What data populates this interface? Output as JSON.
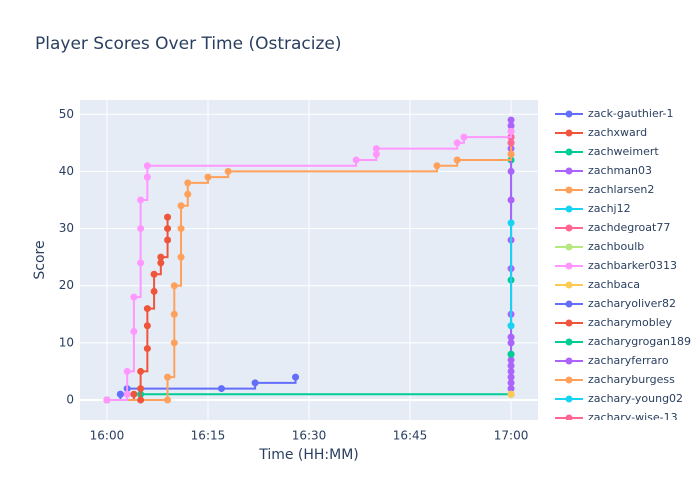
{
  "chart_data": {
    "type": "step-line",
    "title": "Player Scores Over Time (Ostracize)",
    "x_label": "Time (HH:MM)",
    "y_label": "Score",
    "xlim": [
      "15:56",
      "17:04"
    ],
    "xticks": [
      "16:00",
      "16:15",
      "16:30",
      "16:45",
      "17:00"
    ],
    "ylim": [
      -3.5,
      52.5
    ],
    "yticks": [
      0,
      10,
      20,
      30,
      40,
      50
    ],
    "grid": true,
    "legend": "right",
    "series": [
      {
        "name": "zack-gauthier-1",
        "color": "#636efa",
        "x": [
          "16:00",
          "16:02",
          "16:03",
          "16:17",
          "16:22",
          "16:28"
        ],
        "values": [
          0,
          1,
          2,
          2,
          3,
          4
        ]
      },
      {
        "name": "zachxward",
        "color": "#EF553B",
        "x": [
          "16:00",
          "16:04"
        ],
        "values": [
          0,
          1
        ]
      },
      {
        "name": "zachweimert",
        "color": "#00cc96",
        "x": [
          "16:05",
          "17:00",
          "17:00",
          "17:00",
          "17:00"
        ],
        "values": [
          1,
          1,
          8,
          21,
          42
        ]
      },
      {
        "name": "zachman03",
        "color": "#ab63fa",
        "x": [
          "17:00",
          "17:00",
          "17:00",
          "17:00",
          "17:00",
          "17:00",
          "17:00",
          "17:00",
          "17:00",
          "17:00",
          "17:00",
          "17:00",
          "17:00",
          "17:00",
          "17:00",
          "17:00",
          "17:00",
          "17:00",
          "17:00"
        ],
        "values": [
          1,
          2,
          3,
          4,
          5,
          6,
          7,
          10,
          11,
          15,
          23,
          28,
          35,
          44,
          45,
          46,
          47,
          48,
          49
        ]
      },
      {
        "name": "zachlarsen2",
        "color": "#FFA15A",
        "x": [
          "16:00",
          "16:09",
          "16:09",
          "16:10",
          "16:10",
          "16:10",
          "16:11",
          "16:11",
          "16:11",
          "16:12",
          "16:12",
          "16:15",
          "16:18",
          "16:49",
          "16:52",
          "17:00",
          "17:00"
        ],
        "values": [
          0,
          0,
          4,
          10,
          15,
          20,
          25,
          30,
          34,
          36,
          38,
          39,
          40,
          41,
          42,
          43,
          47
        ]
      },
      {
        "name": "zachj12",
        "color": "#19d3f3",
        "x": [
          "17:00",
          "17:00"
        ],
        "values": [
          13,
          31
        ]
      },
      {
        "name": "zachdegroat77",
        "color": "#FF6692",
        "x": [
          "17:00"
        ],
        "values": [
          46
        ]
      },
      {
        "name": "zachboulb",
        "color": "#B6E880",
        "x": [
          "17:00"
        ],
        "values": [
          1
        ]
      },
      {
        "name": "zachbarker0313",
        "color": "#FF97FF",
        "x": [
          "16:00",
          "16:03",
          "16:03",
          "16:04",
          "16:04",
          "16:05",
          "16:05",
          "16:05",
          "16:06",
          "16:06",
          "16:37",
          "16:40",
          "16:40",
          "16:52",
          "16:53",
          "17:00"
        ],
        "values": [
          0,
          1,
          5,
          12,
          18,
          24,
          30,
          35,
          39,
          41,
          42,
          43,
          44,
          45,
          46,
          47
        ]
      },
      {
        "name": "zachbaca",
        "color": "#FECB52",
        "x": [
          "17:00"
        ],
        "values": [
          1
        ]
      },
      {
        "name": "zacharyoliver82",
        "color": "#636efa",
        "x": [
          "16:02"
        ],
        "values": [
          1
        ]
      },
      {
        "name": "zacharymobley",
        "color": "#EF553B",
        "x": [
          "16:05",
          "16:05",
          "16:05",
          "16:06",
          "16:06",
          "16:06",
          "16:07",
          "16:07",
          "16:08",
          "16:08",
          "16:09",
          "16:09",
          "16:09"
        ],
        "values": [
          0,
          2,
          5,
          9,
          13,
          16,
          19,
          22,
          24,
          25,
          28,
          30,
          32
        ]
      },
      {
        "name": "zacharygrogan189",
        "color": "#00cc96",
        "x": [
          "17:00"
        ],
        "values": [
          8
        ]
      },
      {
        "name": "zacharyferraro",
        "color": "#ab63fa",
        "x": [
          "17:00"
        ],
        "values": [
          40
        ]
      },
      {
        "name": "zacharyburgess",
        "color": "#FFA15A",
        "x": [
          "17:00"
        ],
        "values": [
          43
        ]
      },
      {
        "name": "zachary-young02",
        "color": "#19d3f3",
        "x": [
          "17:00"
        ],
        "values": [
          13
        ]
      },
      {
        "name": "zachary-wise-13",
        "color": "#FF6692",
        "x": [
          "17:00"
        ],
        "values": [
          45
        ]
      }
    ]
  }
}
